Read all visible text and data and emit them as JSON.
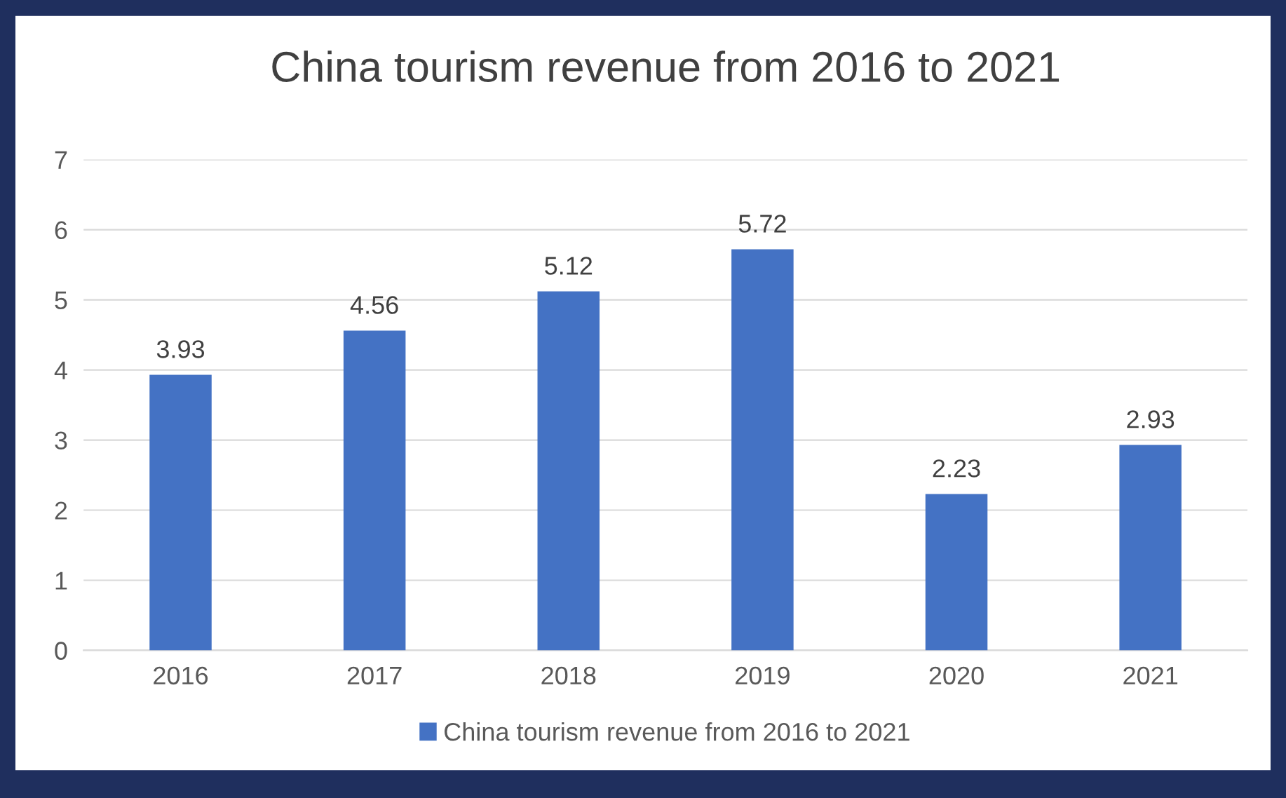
{
  "chart_data": {
    "type": "bar",
    "title": "China tourism revenue from 2016 to 2021",
    "categories": [
      "2016",
      "2017",
      "2018",
      "2019",
      "2020",
      "2021"
    ],
    "series": [
      {
        "name": "China tourism revenue from 2016 to 2021",
        "color": "#4472c4",
        "values": [
          3.93,
          4.56,
          5.12,
          5.72,
          2.23,
          2.93
        ]
      }
    ],
    "ylim": [
      0,
      7
    ],
    "yticks": [
      0,
      1,
      2,
      3,
      4,
      5,
      6,
      7
    ],
    "grid": "y",
    "legend": "bottom",
    "data_labels": true
  }
}
